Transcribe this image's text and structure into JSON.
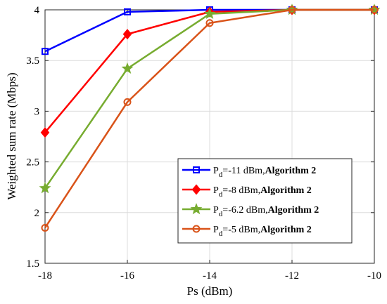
{
  "chart_data": {
    "type": "line",
    "title": "",
    "xlabel": "Ps (dBm)",
    "ylabel": "Weighted sum rate (Mbps)",
    "xlim": [
      -18,
      -10
    ],
    "ylim": [
      1.5,
      4
    ],
    "x_ticks": [
      "-18",
      "-16",
      "-14",
      "-12",
      "-10"
    ],
    "y_ticks": [
      "1.5",
      "2",
      "2.5",
      "3",
      "3.5",
      "4"
    ],
    "x": [
      -18,
      -16,
      -14,
      -12,
      -10
    ],
    "grid": true,
    "legend_position": "right",
    "series": [
      {
        "name_main": "P",
        "name_sub": "d",
        "name_rest": "=-11 dBm,",
        "name_bold": "Algorithm 2",
        "values": [
          3.59,
          3.98,
          4.0,
          4.0,
          4.0
        ],
        "color": "#0000ff",
        "marker": "square"
      },
      {
        "name_main": "P",
        "name_sub": "d",
        "name_rest": "=-8 dBm,",
        "name_bold": "Algorithm 2",
        "values": [
          2.79,
          3.76,
          3.98,
          4.0,
          4.0
        ],
        "color": "#ff0000",
        "marker": "diamond"
      },
      {
        "name_main": "P",
        "name_sub": "d",
        "name_rest": "=-6.2 dBm,",
        "name_bold": "Algorithm 2",
        "values": [
          2.24,
          3.42,
          3.96,
          4.0,
          4.0
        ],
        "color": "#77ac30",
        "marker": "star"
      },
      {
        "name_main": "P",
        "name_sub": "d",
        "name_rest": "=-5 dBm,",
        "name_bold": "Algorithm 2",
        "values": [
          1.85,
          3.09,
          3.87,
          4.0,
          4.0
        ],
        "color": "#d95319",
        "marker": "circle"
      }
    ]
  }
}
